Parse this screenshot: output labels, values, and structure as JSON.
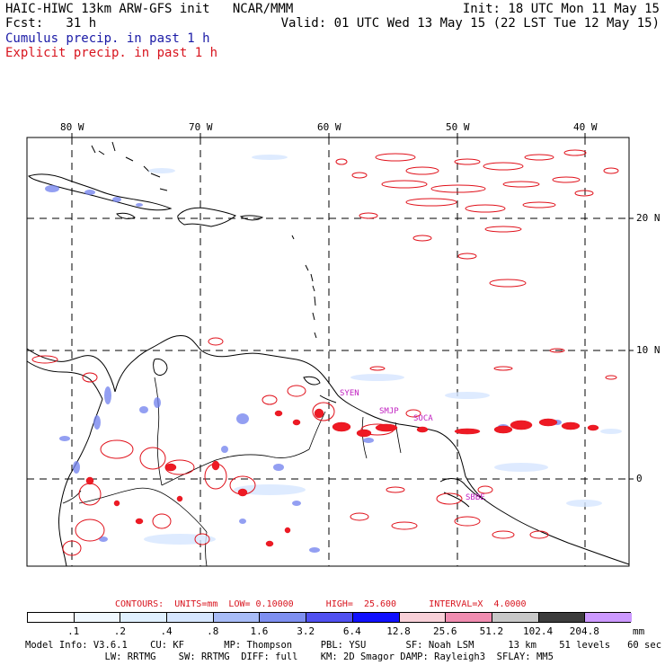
{
  "header": {
    "left1": "HAIC-HIWC 13km ARW-GFS init   NCAR/MMM",
    "left2": "Fcst:   31 h",
    "right1": "Init: 18 UTC Mon 11 May 15",
    "right2": "Valid: 01 UTC Wed 13 May 15 (22 LST Tue 12 May 15)",
    "cumulus": "Cumulus precip. in past 1 h",
    "explicit": "Explicit precip. in past 1 h"
  },
  "axes": {
    "lon_labels": [
      "80 W",
      "70 W",
      "60 W",
      "50 W",
      "40 W"
    ],
    "lat_labels": [
      "20 N",
      "10 N",
      "0"
    ]
  },
  "stations": [
    "SYEN",
    "SMJP",
    "SOCA",
    "SBBE"
  ],
  "contours_line": {
    "label": "CONTOURS:  UNITS=mm  LOW= 0.10000      HIGH=  25.600      INTERVAL=X  4.0000"
  },
  "colorbar": {
    "unit": "mm",
    "labels": [
      ".1",
      ".2",
      ".4",
      ".8",
      "1.6",
      "3.2",
      "6.4",
      "12.8",
      "25.6",
      "51.2",
      "102.4",
      "204.8"
    ],
    "colors": [
      "#ffffff",
      "#f0f8ff",
      "#e0f0ff",
      "#d6e6ff",
      "#a8bcf7",
      "#7e8ff0",
      "#5050f0",
      "#1010ff",
      "#f8d0d8",
      "#f08cb0",
      "#c8c8c8",
      "#3c3c3c",
      "#cc99ff"
    ]
  },
  "footer": {
    "line1": "Model Info: V3.6.1    CU: KF       MP: Thompson     PBL: YSU       SF: Noah LSM      13 km    51 levels   60 sec",
    "line2": "              LW: RRTMG    SW: RRTMG  DIFF: full    KM: 2D Smagor DAMP: Rayleigh3  SFLAY: MM5"
  }
}
